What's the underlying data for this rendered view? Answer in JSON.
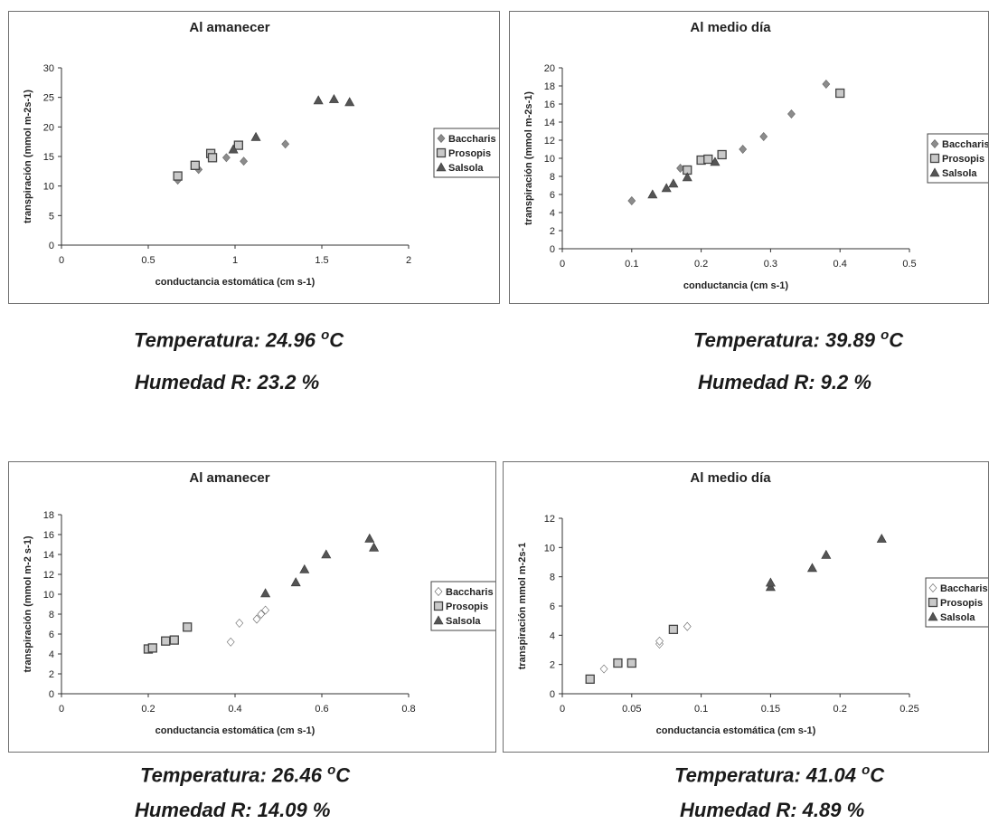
{
  "chart_data": [
    {
      "type": "scatter",
      "title": "Al amanecer",
      "xlabel": "conductancia estomática (cm s-1)",
      "ylabel": "transpiración (mmol m-2s-1)",
      "xlim": [
        0,
        2
      ],
      "ylim": [
        0,
        30
      ],
      "xticks": [
        "0",
        "0.5",
        "1",
        "1.5",
        "2"
      ],
      "yticks": [
        "0",
        "5",
        "10",
        "15",
        "20",
        "25",
        "30"
      ],
      "legend_position": "right",
      "grid": false,
      "series": [
        {
          "name": "Baccharis",
          "marker": "diamond",
          "points": [
            [
              0.67,
              11.0
            ],
            [
              0.79,
              12.8
            ],
            [
              0.95,
              14.8
            ],
            [
              1.05,
              14.2
            ],
            [
              1.29,
              17.1
            ]
          ]
        },
        {
          "name": "Prosopis",
          "marker": "square",
          "points": [
            [
              0.67,
              11.7
            ],
            [
              0.77,
              13.5
            ],
            [
              0.86,
              15.5
            ],
            [
              0.87,
              14.8
            ],
            [
              1.02,
              16.9
            ]
          ]
        },
        {
          "name": "Salsola",
          "marker": "triangle",
          "points": [
            [
              0.99,
              16.2
            ],
            [
              1.12,
              18.3
            ],
            [
              1.48,
              24.5
            ],
            [
              1.57,
              24.7
            ],
            [
              1.66,
              24.2
            ]
          ]
        }
      ]
    },
    {
      "type": "scatter",
      "title": "Al medio día",
      "xlabel": "conductancia (cm s-1)",
      "ylabel": "transpiración (mmol m-2s-1)",
      "xlim": [
        0,
        0.5
      ],
      "ylim": [
        0,
        20
      ],
      "xticks": [
        "0",
        "0.1",
        "0.2",
        "0.3",
        "0.4",
        "0.5"
      ],
      "yticks": [
        "0",
        "2",
        "4",
        "6",
        "8",
        "10",
        "12",
        "14",
        "16",
        "18",
        "20"
      ],
      "legend_position": "right",
      "grid": false,
      "series": [
        {
          "name": "Baccharis",
          "marker": "diamond",
          "points": [
            [
              0.1,
              5.3
            ],
            [
              0.17,
              8.9
            ],
            [
              0.26,
              11.0
            ],
            [
              0.29,
              12.4
            ],
            [
              0.33,
              14.9
            ],
            [
              0.38,
              18.2
            ]
          ]
        },
        {
          "name": "Prosopis",
          "marker": "square",
          "points": [
            [
              0.18,
              8.7
            ],
            [
              0.2,
              9.8
            ],
            [
              0.21,
              9.9
            ],
            [
              0.23,
              10.4
            ],
            [
              0.4,
              17.2
            ]
          ]
        },
        {
          "name": "Salsola",
          "marker": "triangle",
          "points": [
            [
              0.13,
              6.0
            ],
            [
              0.15,
              6.7
            ],
            [
              0.16,
              7.2
            ],
            [
              0.18,
              7.9
            ],
            [
              0.22,
              9.6
            ]
          ]
        }
      ]
    },
    {
      "type": "scatter",
      "title": "Al amanecer",
      "xlabel": "conductancia estomática (cm s-1)",
      "ylabel": "transpiración (mmol m-2 s-1)",
      "xlim": [
        0,
        0.8
      ],
      "ylim": [
        0,
        18
      ],
      "xticks": [
        "0",
        "0.2",
        "0.4",
        "0.6",
        "0.8"
      ],
      "yticks": [
        "0",
        "2",
        "4",
        "6",
        "8",
        "10",
        "12",
        "14",
        "16",
        "18"
      ],
      "legend_position": "right",
      "grid": false,
      "series": [
        {
          "name": "Baccharis",
          "marker": "diamond",
          "points": [
            [
              0.39,
              5.2
            ],
            [
              0.41,
              7.1
            ],
            [
              0.45,
              7.5
            ],
            [
              0.46,
              8.0
            ],
            [
              0.47,
              8.4
            ]
          ]
        },
        {
          "name": "Prosopis",
          "marker": "square",
          "points": [
            [
              0.2,
              4.5
            ],
            [
              0.21,
              4.6
            ],
            [
              0.24,
              5.3
            ],
            [
              0.26,
              5.4
            ],
            [
              0.29,
              6.7
            ]
          ]
        },
        {
          "name": "Salsola",
          "marker": "triangle",
          "points": [
            [
              0.47,
              10.1
            ],
            [
              0.54,
              11.2
            ],
            [
              0.56,
              12.5
            ],
            [
              0.61,
              14.0
            ],
            [
              0.71,
              15.6
            ],
            [
              0.72,
              14.7
            ]
          ]
        }
      ]
    },
    {
      "type": "scatter",
      "title": "Al medio día",
      "xlabel": "conductancia estomática (cm s-1)",
      "ylabel": "transpiración mmol m-2s-1",
      "xlim": [
        0,
        0.25
      ],
      "ylim": [
        0,
        12
      ],
      "xticks": [
        "0",
        "0.05",
        "0.1",
        "0.15",
        "0.2",
        "0.25"
      ],
      "yticks": [
        "0",
        "2",
        "4",
        "6",
        "8",
        "10",
        "12"
      ],
      "legend_position": "right",
      "grid": false,
      "series": [
        {
          "name": "Baccharis",
          "marker": "diamond",
          "points": [
            [
              0.03,
              1.7
            ],
            [
              0.07,
              3.4
            ],
            [
              0.07,
              3.6
            ],
            [
              0.09,
              4.6
            ]
          ]
        },
        {
          "name": "Prosopis",
          "marker": "square",
          "points": [
            [
              0.02,
              1.0
            ],
            [
              0.04,
              2.1
            ],
            [
              0.05,
              2.1
            ],
            [
              0.08,
              4.4
            ]
          ]
        },
        {
          "name": "Salsola",
          "marker": "triangle",
          "points": [
            [
              0.15,
              7.3
            ],
            [
              0.15,
              7.6
            ],
            [
              0.18,
              8.6
            ],
            [
              0.19,
              9.5
            ],
            [
              0.23,
              10.6
            ]
          ]
        }
      ]
    }
  ],
  "captions": [
    {
      "temp_prefix": "Temperatura: 24.96",
      "temp_unit_sup": "o",
      "temp_unit": "C",
      "humidity": "Humedad R: 23.2 %"
    },
    {
      "temp_prefix": "Temperatura: 39.89",
      "temp_unit_sup": "o",
      "temp_unit": "C",
      "humidity": "Humedad R: 9.2 %"
    },
    {
      "temp_prefix": "Temperatura: 26.46",
      "temp_unit_sup": "o",
      "temp_unit": "C",
      "humidity": "Humedad R: 14.09 %"
    },
    {
      "temp_prefix": "Temperatura: 41.04",
      "temp_unit_sup": "o",
      "temp_unit": "C",
      "humidity": "Humedad R: 4.89 %"
    }
  ],
  "colors": {
    "Baccharis": "#8c8c8c",
    "Prosopis": "#8f8f8f",
    "Salsola": "#555555",
    "axis": "#333333"
  }
}
